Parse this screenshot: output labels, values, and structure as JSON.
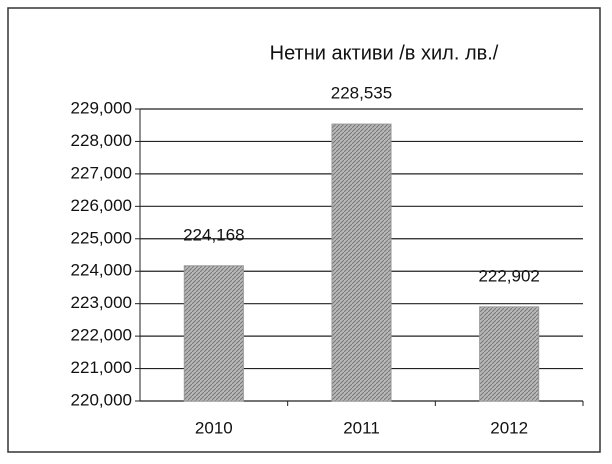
{
  "chart_data": {
    "type": "bar",
    "title": "Нетни активи /в хил. лв./",
    "categories": [
      "2010",
      "2011",
      "2012"
    ],
    "values": [
      224168,
      228535,
      222902
    ],
    "value_labels": [
      "224,168",
      "228,535",
      "222,902"
    ],
    "color": "#a8a8a8",
    "ylim": [
      220000,
      229000
    ],
    "yticks": [
      {
        "value": 220000,
        "label": "220,000"
      },
      {
        "value": 221000,
        "label": "221,000"
      },
      {
        "value": 222000,
        "label": "222,000"
      },
      {
        "value": 223000,
        "label": "223,000"
      },
      {
        "value": 224000,
        "label": "224,000"
      },
      {
        "value": 225000,
        "label": "225,000"
      },
      {
        "value": 226000,
        "label": "226,000"
      },
      {
        "value": 227000,
        "label": "227,000"
      },
      {
        "value": 228000,
        "label": "228,000"
      },
      {
        "value": 229000,
        "label": "229,000"
      }
    ],
    "grid": true
  }
}
